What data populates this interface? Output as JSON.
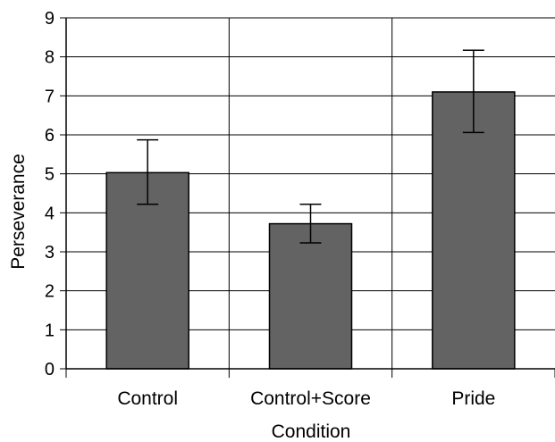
{
  "chart_data": {
    "type": "bar",
    "title": "",
    "xlabel": "Condition",
    "ylabel": "Perseverance",
    "categories": [
      "Control",
      "Control+Score",
      "Pride"
    ],
    "values": [
      5.03,
      3.72,
      7.1
    ],
    "error_low": [
      4.22,
      3.23,
      6.06
    ],
    "error_high": [
      5.87,
      4.22,
      8.17
    ],
    "ylim": [
      0,
      9
    ],
    "yticks": [
      "0",
      "1",
      "2",
      "3",
      "4",
      "5",
      "6",
      "7",
      "8",
      "9"
    ],
    "grid": true,
    "bar_color": "#636363",
    "bar_edge_color": "#000000",
    "grid_color": "#000000"
  }
}
